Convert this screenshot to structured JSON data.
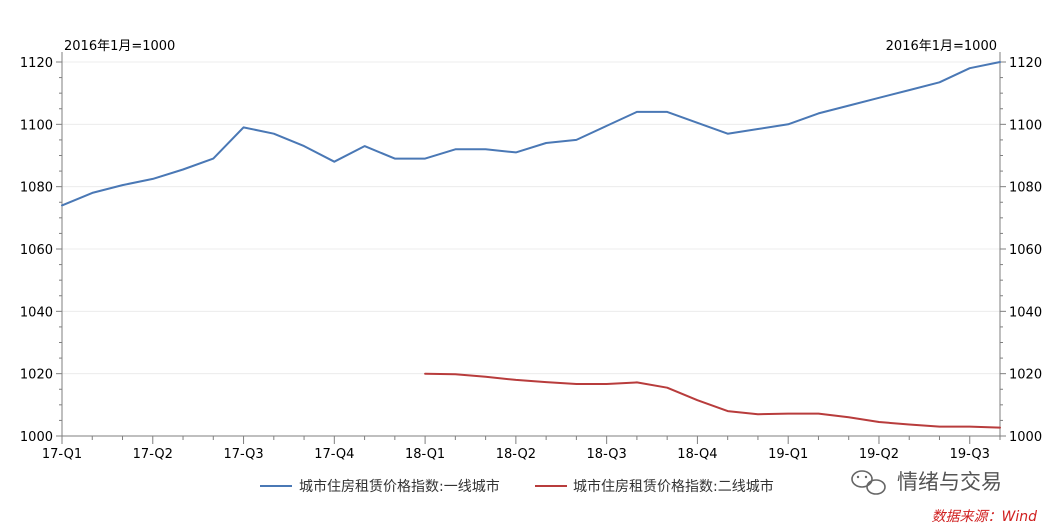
{
  "chart_data": {
    "type": "line",
    "unit_left": "2016年1月=1000",
    "unit_right": "2016年1月=1000",
    "ylim": [
      1000,
      1120
    ],
    "y_ticks": [
      1000,
      1020,
      1040,
      1060,
      1080,
      1100,
      1120
    ],
    "x_tick_labels": [
      "17-Q1",
      "17-Q2",
      "17-Q3",
      "17-Q4",
      "18-Q1",
      "18-Q2",
      "18-Q3",
      "18-Q4",
      "19-Q1",
      "19-Q2",
      "19-Q3"
    ],
    "grid": "horizontal",
    "legend_position": "bottom",
    "series": [
      {
        "name": "城市住房租赁价格指数:一线城市",
        "color": "#4a78b5",
        "points": [
          [
            0.0,
            1074
          ],
          [
            1.0,
            1078
          ],
          [
            2.0,
            1080.5
          ],
          [
            3.0,
            1082.5
          ],
          [
            4.0,
            1085.5
          ],
          [
            5.0,
            1089
          ],
          [
            6.0,
            1099
          ],
          [
            7.0,
            1097
          ],
          [
            8.0,
            1093
          ],
          [
            9.0,
            1088
          ],
          [
            10.0,
            1093
          ],
          [
            11.0,
            1089
          ],
          [
            12.0,
            1089
          ],
          [
            13.0,
            1092
          ],
          [
            14.0,
            1092
          ],
          [
            15.0,
            1091
          ],
          [
            16.0,
            1094
          ],
          [
            17.0,
            1095
          ],
          [
            18.0,
            1099.5
          ],
          [
            19.0,
            1104
          ],
          [
            20.0,
            1104
          ],
          [
            21.0,
            1100.5
          ],
          [
            22.0,
            1097
          ],
          [
            23.0,
            1098.5
          ],
          [
            24.0,
            1100
          ],
          [
            25.0,
            1103.5
          ],
          [
            26.0,
            1106
          ],
          [
            27.0,
            1108.5
          ],
          [
            28.0,
            1111
          ],
          [
            29.0,
            1113.5
          ],
          [
            30.0,
            1118
          ],
          [
            31.0,
            1120
          ]
        ]
      },
      {
        "name": "城市住房租赁价格指数:二线城市",
        "color": "#b83c3c",
        "points": [
          [
            12.0,
            1020
          ],
          [
            13.0,
            1019.8
          ],
          [
            14.0,
            1019
          ],
          [
            15.0,
            1018
          ],
          [
            16.0,
            1017.3
          ],
          [
            17.0,
            1016.7
          ],
          [
            18.0,
            1016.7
          ],
          [
            19.0,
            1017.2
          ],
          [
            20.0,
            1015.5
          ],
          [
            21.0,
            1011.5
          ],
          [
            22.0,
            1008
          ],
          [
            23.0,
            1007
          ],
          [
            24.0,
            1007.2
          ],
          [
            25.0,
            1007.2
          ],
          [
            26.0,
            1006
          ],
          [
            27.0,
            1004.5
          ],
          [
            28.0,
            1003.7
          ],
          [
            29.0,
            1003
          ],
          [
            30.0,
            1003
          ],
          [
            31.0,
            1002.7
          ]
        ]
      }
    ]
  },
  "watermark": {
    "icon": "wechat-icon",
    "text": "情绪与交易"
  },
  "source": {
    "text": "数据来源：Wind"
  }
}
